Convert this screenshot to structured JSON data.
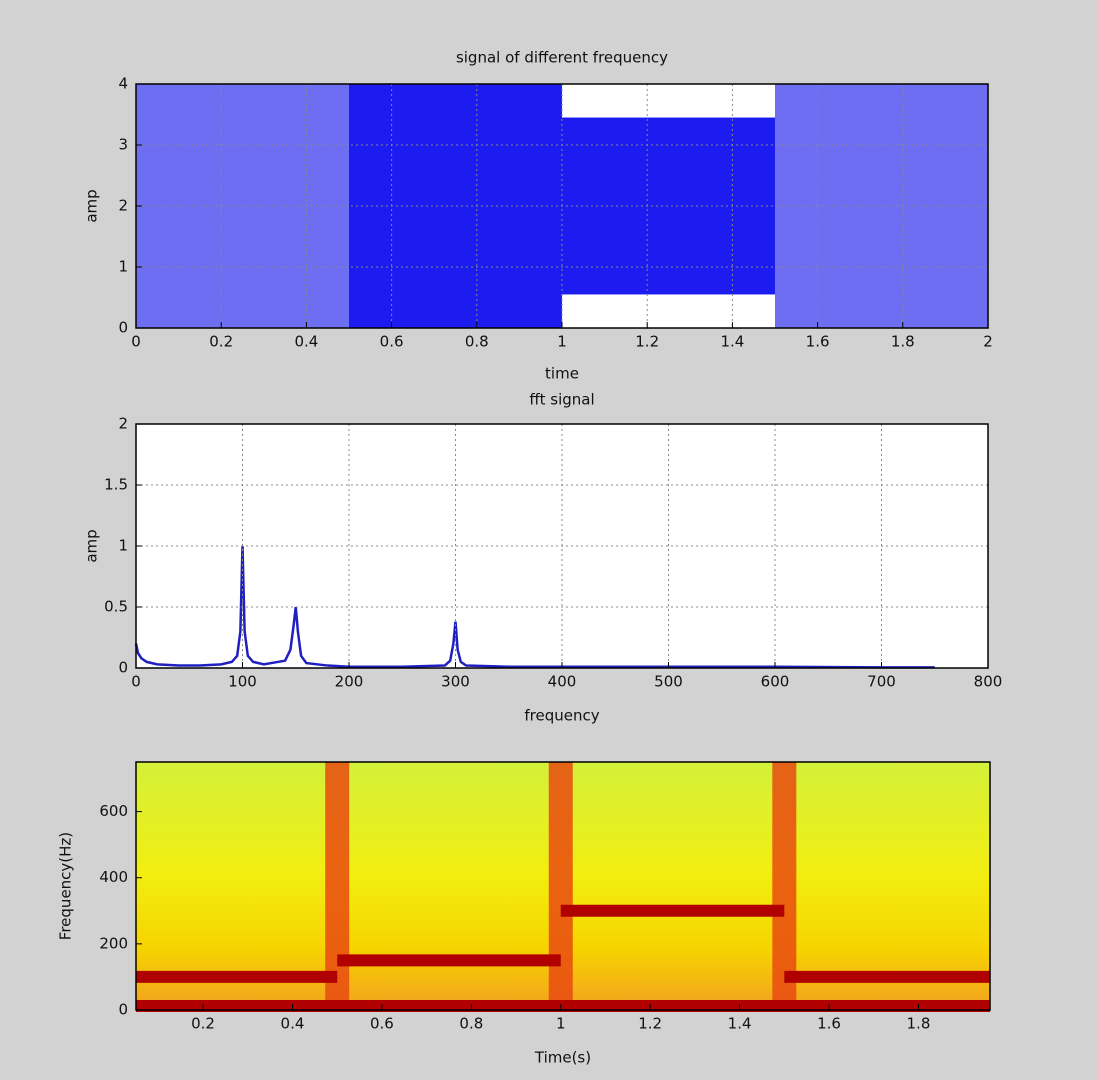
{
  "chart_data": [
    {
      "type": "band",
      "title": "signal of different frequency",
      "xlabel": "time",
      "ylabel": "amp",
      "xlim": [
        0,
        2
      ],
      "ylim": [
        0,
        4
      ],
      "xticks": [
        0,
        0.2,
        0.4,
        0.6,
        0.8,
        1,
        1.2,
        1.4,
        1.6,
        1.8,
        2
      ],
      "yticks": [
        0,
        1,
        2,
        3,
        4
      ],
      "grid": true,
      "segments": [
        {
          "xrange": [
            0,
            0.5
          ],
          "yrange": [
            0,
            4
          ],
          "color": "#6e6ef2"
        },
        {
          "xrange": [
            0.5,
            1
          ],
          "yrange": [
            0,
            4
          ],
          "color": "#1c1cf0"
        },
        {
          "xrange": [
            1,
            1.5
          ],
          "yrange": [
            0.55,
            3.45
          ],
          "color": "#1c1cf0"
        },
        {
          "xrange": [
            1.5,
            2
          ],
          "yrange": [
            0,
            4
          ],
          "color": "#6e6ef2"
        }
      ]
    },
    {
      "type": "line",
      "title": "fft signal",
      "xlabel": "frequency",
      "ylabel": "amp",
      "xlim": [
        0,
        800
      ],
      "ylim": [
        0,
        2
      ],
      "xticks": [
        0,
        100,
        200,
        300,
        400,
        500,
        600,
        700,
        800
      ],
      "yticks": [
        0,
        0.5,
        1,
        1.5,
        2
      ],
      "grid": true,
      "color": "#2020c0",
      "x": [
        0,
        2,
        5,
        10,
        20,
        40,
        60,
        80,
        90,
        95,
        98,
        100,
        102,
        105,
        110,
        120,
        140,
        145,
        148,
        150,
        152,
        155,
        160,
        180,
        200,
        250,
        290,
        295,
        298,
        300,
        302,
        305,
        310,
        350,
        400,
        500,
        600,
        700,
        750
      ],
      "values": [
        0.2,
        0.12,
        0.08,
        0.05,
        0.03,
        0.02,
        0.02,
        0.03,
        0.05,
        0.1,
        0.3,
        1.0,
        0.3,
        0.1,
        0.05,
        0.03,
        0.06,
        0.15,
        0.35,
        0.5,
        0.3,
        0.1,
        0.04,
        0.02,
        0.01,
        0.01,
        0.02,
        0.06,
        0.2,
        0.38,
        0.15,
        0.05,
        0.02,
        0.01,
        0.01,
        0.01,
        0.01,
        0.005,
        0.005
      ]
    },
    {
      "type": "spectrogram",
      "xlabel": "Time(s)",
      "ylabel": "Frequency(Hz)",
      "xlim": [
        0.05,
        1.96
      ],
      "ylim": [
        0,
        750
      ],
      "xticks": [
        0.2,
        0.4,
        0.6,
        0.8,
        1,
        1.2,
        1.4,
        1.6,
        1.8
      ],
      "yticks": [
        0,
        200,
        400,
        600
      ],
      "grid": false,
      "color": "#b00000",
      "segments": [
        {
          "x": [
            0.05,
            0.5
          ],
          "y": 100
        },
        {
          "x": [
            0.5,
            1
          ],
          "y": 150
        },
        {
          "x": [
            1,
            1.5
          ],
          "y": 300
        },
        {
          "x": [
            1.5,
            1.96
          ],
          "y": 100
        },
        {
          "x": [
            0.05,
            1.96
          ],
          "y": 0
        }
      ]
    }
  ]
}
